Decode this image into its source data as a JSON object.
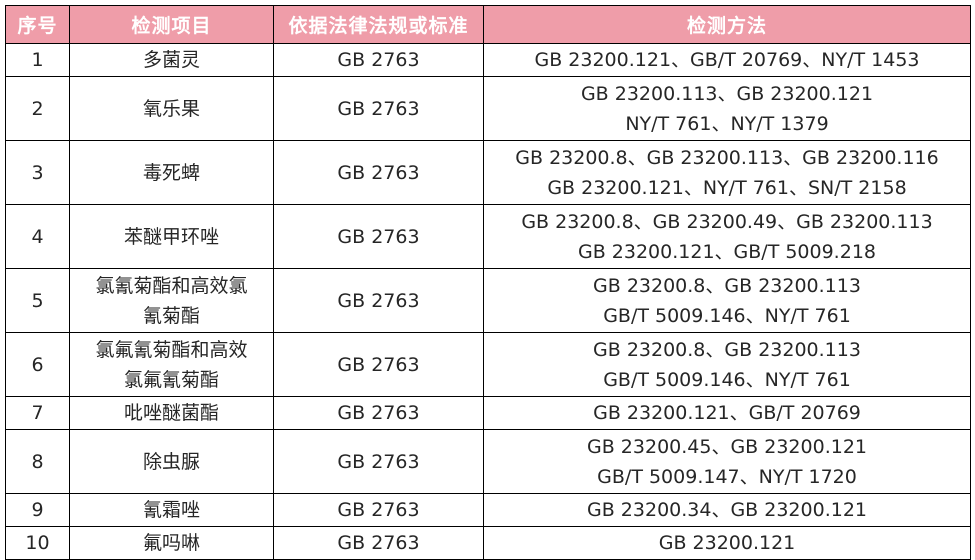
{
  "colors": {
    "header_bg": "#ef9da9",
    "header_text": "#ffffff",
    "border": "#000000",
    "body_text": "#262626"
  },
  "table": {
    "columns": [
      {
        "key": "index",
        "label": "序号"
      },
      {
        "key": "item",
        "label": "检测项目"
      },
      {
        "key": "standard",
        "label": "依据法律法规或标准"
      },
      {
        "key": "method",
        "label": "检测方法"
      }
    ],
    "rows": [
      {
        "index": "1",
        "item": "多菌灵",
        "standard": "GB 2763",
        "methods": [
          "GB 23200.121、GB/T 20769、NY/T 1453"
        ]
      },
      {
        "index": "2",
        "item": "氧乐果",
        "standard": "GB 2763",
        "methods": [
          "GB 23200.113、GB 23200.121",
          "NY/T 761、NY/T 1379"
        ]
      },
      {
        "index": "3",
        "item": "毒死蜱",
        "standard": "GB 2763",
        "methods": [
          "GB 23200.8、GB 23200.113、GB 23200.116",
          "GB 23200.121、NY/T 761、SN/T 2158"
        ]
      },
      {
        "index": "4",
        "item": "苯醚甲环唑",
        "standard": "GB 2763",
        "methods": [
          "GB 23200.8、GB 23200.49、GB 23200.113",
          "GB 23200.121、GB/T 5009.218"
        ]
      },
      {
        "index": "5",
        "item": "氯氰菊酯和高效氯\n氰菊酯",
        "standard": "GB 2763",
        "methods": [
          "GB 23200.8、GB 23200.113",
          "GB/T 5009.146、NY/T 761"
        ]
      },
      {
        "index": "6",
        "item": "氯氟氰菊酯和高效\n氯氟氰菊酯",
        "standard": "GB 2763",
        "methods": [
          "GB 23200.8、GB 23200.113",
          "GB/T 5009.146、NY/T 761"
        ]
      },
      {
        "index": "7",
        "item": "吡唑醚菌酯",
        "standard": "GB 2763",
        "methods": [
          "GB 23200.121、GB/T 20769"
        ]
      },
      {
        "index": "8",
        "item": "除虫脲",
        "standard": "GB 2763",
        "methods": [
          "GB 23200.45、GB 23200.121",
          "GB/T 5009.147、NY/T 1720"
        ]
      },
      {
        "index": "9",
        "item": "氰霜唑",
        "standard": "GB 2763",
        "methods": [
          "GB 23200.34、GB 23200.121"
        ]
      },
      {
        "index": "10",
        "item": "氟吗啉",
        "standard": "GB 2763",
        "methods": [
          "GB 23200.121"
        ]
      }
    ]
  }
}
